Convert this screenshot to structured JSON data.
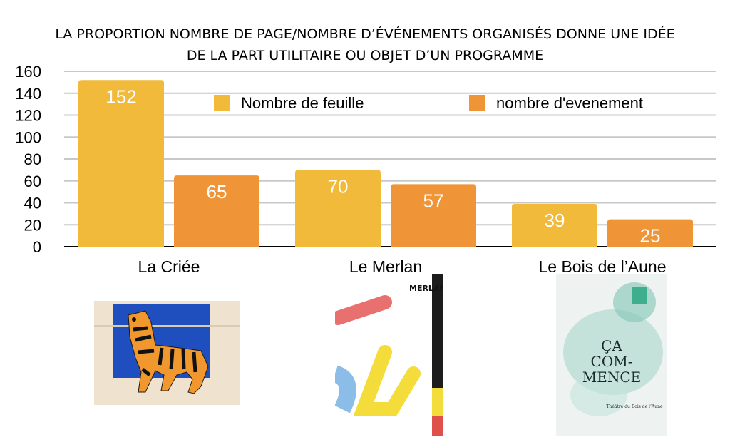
{
  "chart_data": {
    "type": "bar",
    "title_line1": "LA PROPORTION NOMBRE DE PAGE/NOMBRE D’ÉVÉNEMENTS ORGANISÉS DONNE UNE IDÉE",
    "title_line2": "DE LA PART UTILITAIRE OU OBJET D’UN PROGRAMME",
    "categories": [
      "La Criée",
      "Le Merlan",
      "Le Bois de l’Aune"
    ],
    "series": [
      {
        "name": "Nombre de feuille",
        "values": [
          152,
          70,
          39
        ],
        "color": "#F1BA3A"
      },
      {
        "name": "nombre d'evenement",
        "values": [
          65,
          57,
          25
        ],
        "color": "#EF9537"
      }
    ],
    "yticks": [
      0,
      20,
      40,
      60,
      80,
      100,
      120,
      140,
      160
    ],
    "ylim": [
      0,
      160
    ],
    "grid": true,
    "legend_position": "top-center"
  },
  "covers": {
    "merlan_logo_text": "MERLAN",
    "aune_text_line1": "ÇA",
    "aune_text_line2": "COM-",
    "aune_text_line3": "MENCE",
    "aune_subtitle": "Théâtre du Bois de l’Aune"
  }
}
